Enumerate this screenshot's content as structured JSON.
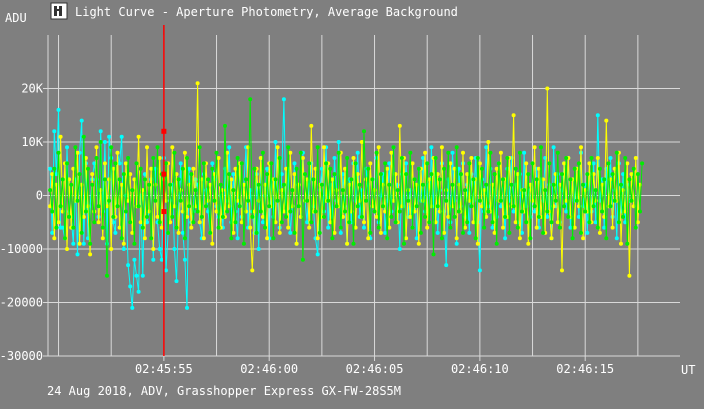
{
  "window": {
    "title": "Light Curve - Aperture Photometry, Average Background",
    "app_icon": "tangra-app-icon"
  },
  "footer": {
    "caption": "24 Aug 2018, ADV, Grasshopper Express GX-FW-28S5M"
  },
  "colors": {
    "background": "#7f7f7f",
    "grid": "#d9d9d9",
    "series_cyan": "#00ffff",
    "series_yellow": "#ffff00",
    "series_green": "#00ee00",
    "cursor": "#ff0000"
  },
  "chart_data": {
    "type": "line",
    "title": "Light Curve - Aperture Photometry, Average Background",
    "ylabel": "ADU",
    "xlabel": "UT",
    "ylim": [
      -30000,
      30000
    ],
    "y_ticks": [
      {
        "value": 20000,
        "label": "20K"
      },
      {
        "value": 10000,
        "label": "10K"
      },
      {
        "value": 0,
        "label": "0"
      },
      {
        "value": -10000,
        "label": "-10000"
      },
      {
        "value": -20000,
        "label": "-20000"
      },
      {
        "value": -30000,
        "label": "-30000"
      }
    ],
    "x_ticks": [
      "02:45:55",
      "02:46:00",
      "02:46:05",
      "02:46:10",
      "02:46:15"
    ],
    "xlim_frames": [
      0,
      300
    ],
    "x_tick_frames": [
      55,
      105,
      155,
      205,
      255
    ],
    "cursor_frame": 55,
    "cursor_markers": [
      12000,
      4000,
      -3000
    ],
    "grid": true,
    "series": [
      {
        "color": "#00ffff",
        "values": [
          5000,
          -7000,
          12000,
          4000,
          16000,
          -6000,
          -6000,
          -8000,
          9000,
          -3000,
          -4000,
          -9000,
          3000,
          -11000,
          8000,
          14000,
          -9000,
          6000,
          -8000,
          -2000,
          3000,
          6000,
          3000,
          -4000,
          12000,
          -3000,
          10000,
          -9000,
          11000,
          7000,
          -5000,
          -7000,
          8000,
          6000,
          11000,
          -10000,
          0,
          -13000,
          -17000,
          -21000,
          -12000,
          -15000,
          -18000,
          0,
          -15000,
          4000,
          -5000,
          -3000,
          3000,
          -12000,
          5000,
          -5000,
          -10000,
          -12000,
          7000,
          -14000,
          -7000,
          -1000,
          2000,
          -10000,
          -16000,
          -3000,
          6000,
          -7000,
          -12000,
          -21000,
          5000,
          -5000,
          -3000,
          3000,
          2000,
          -5000,
          -8000,
          4000,
          1000,
          -3000,
          -7000,
          6000,
          3000,
          -2000,
          -4000,
          0,
          -6000,
          5000,
          -1000,
          9000,
          -5000,
          4000,
          -3000,
          -8000,
          6000,
          -4000,
          2000,
          9000,
          -6000,
          1000,
          -3000,
          -7000,
          4000,
          -10000,
          7000,
          -5000,
          0,
          5000,
          -8000,
          3000,
          -4000,
          10000,
          -1000,
          -6000,
          4000,
          18000,
          -3000,
          5000,
          -7000,
          -2000,
          6000,
          -9000,
          2000,
          -4000,
          8000,
          -1000,
          -5000,
          3000,
          6000,
          -2000,
          -8000,
          -11000,
          1000,
          5000,
          -3000,
          9000,
          -6000,
          2000,
          -4000,
          7000,
          -1000,
          10000,
          -7000,
          4000,
          -2000,
          -9000,
          3000,
          -5000,
          6000,
          -1000,
          8000,
          -4000,
          1000,
          -6000,
          5000,
          2000,
          -8000,
          3000,
          -3000,
          7000,
          -5000,
          0,
          4000,
          -7000,
          -1000,
          6000,
          -3000,
          9000,
          -5000,
          2000,
          -10000,
          4000,
          -2000,
          6000,
          -4000,
          1000,
          -6000,
          3000,
          -8000,
          5000,
          -1000,
          7000,
          -3000,
          2000,
          -5000,
          9000,
          -2000,
          4000,
          -7000,
          1000,
          6000,
          -3000,
          -13000,
          3000,
          -5000,
          8000,
          -1000,
          -9000,
          5000,
          -2000,
          6000,
          -4000,
          2000,
          -7000,
          4000,
          -1000,
          7000,
          -5000,
          -14000,
          3000,
          -3000,
          9000,
          -2000,
          5000,
          -6000,
          1000,
          -4000,
          6000,
          -2000,
          3000,
          -8000,
          5000,
          -1000,
          7000,
          -3000,
          2000,
          -5000,
          4000,
          -7000,
          8000,
          -2000,
          1000,
          -4000,
          6000,
          -3000,
          5000,
          -6000,
          3000,
          -1000,
          7000,
          -4000,
          2000,
          -8000,
          9000,
          -2000,
          4000,
          -5000,
          1000,
          6000,
          -3000,
          7000,
          -6000,
          3000,
          -1000,
          5000,
          -4000,
          8000,
          -2000,
          2000,
          -7000,
          4000,
          -3000,
          6000,
          -5000,
          15000,
          -1000,
          3000,
          -6000,
          5000,
          -2000,
          7000,
          -4000,
          1000,
          -8000,
          6000,
          -3000,
          4000,
          -5000,
          2000,
          -1000
        ]
      },
      {
        "color": "#ffff00",
        "values": [
          -2000,
          4000,
          -8000,
          2000,
          -5000,
          11000,
          -3000,
          6000,
          -10000,
          3000,
          -6000,
          5000,
          -1000,
          8000,
          -9000,
          2000,
          -4000,
          7000,
          -2000,
          -11000,
          4000,
          -3000,
          9000,
          -5000,
          1000,
          -8000,
          6000,
          -2000,
          3000,
          -10000,
          5000,
          -4000,
          8000,
          -6000,
          2000,
          -9000,
          6000,
          -1000,
          4000,
          -7000,
          3000,
          -2000,
          11000,
          -5000,
          1000,
          -8000,
          9000,
          -3000,
          5000,
          -10000,
          2000,
          -4000,
          7000,
          -6000,
          3000,
          -1000,
          6000,
          -5000,
          9000,
          -2000,
          4000,
          -7000,
          1000,
          -3000,
          8000,
          -4000,
          2000,
          -6000,
          5000,
          -2000,
          21000,
          -5000,
          3000,
          -8000,
          6000,
          -1000,
          2000,
          -9000,
          4000,
          -3000,
          7000,
          -6000,
          1000,
          -4000,
          8000,
          -2000,
          3000,
          -7000,
          5000,
          -1000,
          6000,
          -5000,
          2000,
          -3000,
          9000,
          -6000,
          -14000,
          -3000,
          5000,
          -1000,
          7000,
          -4000,
          2000,
          -8000,
          6000,
          -2000,
          3000,
          -5000,
          9000,
          -7000,
          1000,
          -3000,
          5000,
          -6000,
          8000,
          -2000,
          4000,
          -9000,
          2000,
          -4000,
          7000,
          -1000,
          3000,
          -6000,
          13000,
          -3000,
          5000,
          -8000,
          2000,
          -4000,
          9000,
          -1000,
          6000,
          -5000,
          3000,
          -7000,
          1000,
          -2000,
          8000,
          -4000,
          5000,
          -9000,
          2000,
          -3000,
          7000,
          -6000,
          4000,
          -1000,
          10000,
          -5000,
          3000,
          -8000,
          6000,
          -2000,
          1000,
          -4000,
          9000,
          -7000,
          2000,
          -3000,
          5000,
          -6000,
          8000,
          -1000,
          4000,
          -5000,
          13000,
          -2000,
          7000,
          -8000,
          1000,
          -4000,
          6000,
          -3000,
          2000,
          -9000,
          5000,
          -1000,
          8000,
          -6000,
          3000,
          -2000,
          7000,
          -5000,
          4000,
          -3000,
          9000,
          -7000,
          1000,
          -4000,
          6000,
          -2000,
          5000,
          -8000,
          2000,
          -3000,
          8000,
          -6000,
          4000,
          -1000,
          7000,
          -5000,
          3000,
          -9000,
          6000,
          -2000,
          1000,
          -4000,
          10000,
          -3000,
          2000,
          -7000,
          5000,
          -1000,
          8000,
          -6000,
          3000,
          -4000,
          7000,
          -2000,
          15000,
          -5000,
          4000,
          -8000,
          1000,
          -3000,
          6000,
          -9000,
          2000,
          -1000,
          9000,
          -6000,
          5000,
          -4000,
          3000,
          -7000,
          20000,
          -3000,
          -8000,
          -2000,
          4000,
          -5000,
          2000,
          -14000,
          6000,
          -1000,
          7000,
          -4000,
          3000,
          -6000,
          5000,
          -2000,
          9000,
          -8000,
          1000,
          -3000,
          6000,
          -5000,
          4000,
          -1000,
          7000,
          -7000,
          2000,
          -4000,
          14000,
          -2000,
          3000,
          -6000,
          5000,
          -1000,
          8000,
          -9000,
          1000,
          -3000,
          6000,
          -15000,
          4000,
          -2000,
          7000,
          -5000,
          2000
        ]
      },
      {
        "color": "#00ee00",
        "values": [
          1000,
          -3000,
          5000,
          -6000,
          8000,
          -2000,
          3000,
          -8000,
          6000,
          -4000,
          2000,
          -6000,
          9000,
          -1000,
          4000,
          -7000,
          11000,
          -3000,
          5000,
          -9000,
          2000,
          -5000,
          7000,
          -2000,
          10000,
          -6000,
          3000,
          -15000,
          -1000,
          9000,
          -4000,
          6000,
          -2000,
          3000,
          -8000,
          4000,
          -3000,
          7000,
          -5000,
          1000,
          -9000,
          6000,
          -2000,
          5000,
          -6000,
          3000,
          -4000,
          2000,
          -8000,
          7000,
          -1000,
          9000,
          -5000,
          4000,
          -3000,
          6000,
          -7000,
          2000,
          -4000,
          8000,
          -6000,
          3000,
          -1000,
          5000,
          -8000,
          7000,
          -2000,
          4000,
          -5000,
          1000,
          -3000,
          9000,
          -4000,
          6000,
          -2000,
          3000,
          -7000,
          5000,
          -1000,
          8000,
          -6000,
          2000,
          -4000,
          13000,
          -3000,
          4000,
          -8000,
          1000,
          -5000,
          7000,
          -2000,
          6000,
          -9000,
          3000,
          -1000,
          18000,
          -4000,
          5000,
          -7000,
          2000,
          -3000,
          8000,
          -6000,
          4000,
          -2000,
          6000,
          -8000,
          3000,
          -1000,
          7000,
          -5000,
          2000,
          -4000,
          9000,
          -3000,
          1000,
          -7000,
          5000,
          -2000,
          8000,
          -12000,
          4000,
          -1000,
          6000,
          -5000,
          3000,
          -3000,
          9000,
          -7000,
          2000,
          -4000,
          6000,
          -1000,
          5000,
          -8000,
          4000,
          -2000,
          8000,
          -6000,
          1000,
          -3000,
          7000,
          -5000,
          3000,
          -9000,
          6000,
          -2000,
          2000,
          -4000,
          12000,
          -1000,
          5000,
          -7000,
          3000,
          -3000,
          8000,
          -6000,
          4000,
          -2000,
          6000,
          -8000,
          2000,
          -4000,
          9000,
          -5000,
          1000,
          -3000,
          7000,
          -9000,
          4000,
          -1000,
          8000,
          -6000,
          3000,
          -2000,
          5000,
          -7000,
          2000,
          -4000,
          6000,
          -5000,
          4000,
          -11000,
          7000,
          -2000,
          3000,
          -8000,
          5000,
          -1000,
          8000,
          -6000,
          2000,
          -4000,
          9000,
          -3000,
          4000,
          -7000,
          1000,
          -5000,
          6000,
          -2000,
          3000,
          -8000,
          7000,
          -1000,
          5000,
          -6000,
          2000,
          -3000,
          8000,
          -5000,
          4000,
          -9000,
          6000,
          -1000,
          3000,
          -4000,
          7000,
          -7000,
          2000,
          -2000,
          5000,
          -6000,
          8000,
          -3000,
          1000,
          -5000,
          4000,
          -8000,
          6000,
          -2000,
          3000,
          -4000,
          9000,
          -7000,
          1000,
          -3000,
          6000,
          -5000,
          2000,
          -1000,
          8000,
          -6000,
          4000,
          -2000,
          7000,
          -4000,
          3000,
          -8000,
          5000,
          -1000,
          6000,
          -7000,
          2000,
          -3000,
          4000,
          -5000,
          7000,
          -2000,
          1000,
          -6000,
          5000,
          -3000,
          3000,
          -8000,
          6000,
          -2000,
          4000,
          -1000,
          8000,
          -5000,
          2000,
          -4000,
          7000,
          -9000,
          3000,
          -1000,
          5000,
          -6000,
          4000,
          -3000,
          6000
        ]
      }
    ]
  }
}
